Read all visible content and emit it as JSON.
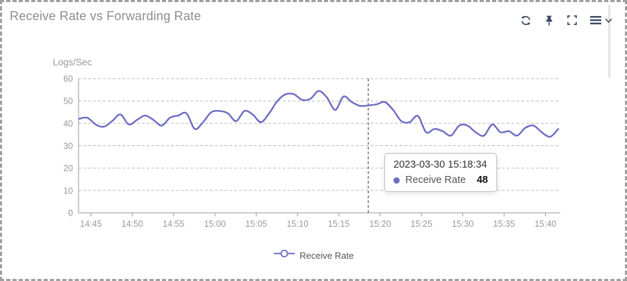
{
  "panel": {
    "title": "Receive Rate vs Forwarding Rate"
  },
  "toolbar": {
    "icons": [
      "refresh-icon",
      "pin-icon",
      "fullscreen-icon",
      "menu-icon",
      "chevron-down-icon"
    ]
  },
  "tooltip": {
    "timestamp": "2023-03-30 15:18:34",
    "series": "Receive Rate",
    "value": "48"
  },
  "legend": {
    "label": "Receive Rate"
  },
  "colors": {
    "line": "#6a6cc4",
    "grid": "#b9b9b9",
    "axis": "#9a9a9a",
    "tick_text": "#999999",
    "title_text": "#8d8d8d",
    "icon": "#3d4b63",
    "crosshair": "#333333"
  },
  "chart_data": {
    "type": "line",
    "title": "Receive Rate vs Forwarding Rate",
    "xlabel": "",
    "ylabel": "Logs/Sec",
    "ylim": [
      0,
      60
    ],
    "yticks": [
      0,
      10,
      20,
      30,
      40,
      50,
      60
    ],
    "xticks": [
      "14:45",
      "14:50",
      "14:55",
      "15:00",
      "15:05",
      "15:10",
      "15:15",
      "15:20",
      "15:25",
      "15:30",
      "15:35",
      "15:40"
    ],
    "x_domain": [
      "14:43:30",
      "15:41:48"
    ],
    "grid": true,
    "legend_position": "bottom",
    "crosshair_x": "15:18:34",
    "series": [
      {
        "name": "Receive Rate",
        "color": "#6a6cc4",
        "points": [
          [
            "14:43:34",
            42
          ],
          [
            "14:44:34",
            42.5
          ],
          [
            "14:45:34",
            39.5
          ],
          [
            "14:46:34",
            38.5
          ],
          [
            "14:47:34",
            41
          ],
          [
            "14:48:34",
            44
          ],
          [
            "14:49:34",
            39.5
          ],
          [
            "14:50:34",
            41.5
          ],
          [
            "14:51:34",
            43.5
          ],
          [
            "14:52:34",
            41.5
          ],
          [
            "14:53:34",
            39
          ],
          [
            "14:54:34",
            42.5
          ],
          [
            "14:55:34",
            43.5
          ],
          [
            "14:56:34",
            44.5
          ],
          [
            "14:57:34",
            37.5
          ],
          [
            "14:58:34",
            40.5
          ],
          [
            "14:59:34",
            45
          ],
          [
            "15:00:34",
            45.5
          ],
          [
            "15:01:34",
            44.5
          ],
          [
            "15:02:34",
            41
          ],
          [
            "15:03:34",
            45.5
          ],
          [
            "15:04:34",
            44
          ],
          [
            "15:05:34",
            40.5
          ],
          [
            "15:06:34",
            44.5
          ],
          [
            "15:07:34",
            50
          ],
          [
            "15:08:34",
            53
          ],
          [
            "15:09:34",
            53
          ],
          [
            "15:10:34",
            50.5
          ],
          [
            "15:11:34",
            51
          ],
          [
            "15:12:34",
            54.5
          ],
          [
            "15:13:34",
            51.5
          ],
          [
            "15:14:34",
            46
          ],
          [
            "15:15:34",
            52
          ],
          [
            "15:16:34",
            49.5
          ],
          [
            "15:17:34",
            47.8
          ],
          [
            "15:18:34",
            48
          ],
          [
            "15:19:34",
            48.5
          ],
          [
            "15:20:34",
            49.5
          ],
          [
            "15:21:34",
            46
          ],
          [
            "15:22:34",
            41
          ],
          [
            "15:23:34",
            40.5
          ],
          [
            "15:24:34",
            43.3
          ],
          [
            "15:25:34",
            36
          ],
          [
            "15:26:34",
            37.5
          ],
          [
            "15:27:34",
            36.5
          ],
          [
            "15:28:34",
            34.5
          ],
          [
            "15:29:34",
            39
          ],
          [
            "15:30:34",
            39
          ],
          [
            "15:31:34",
            36
          ],
          [
            "15:32:34",
            34.5
          ],
          [
            "15:33:34",
            39.5
          ],
          [
            "15:34:34",
            36
          ],
          [
            "15:35:34",
            36.5
          ],
          [
            "15:36:34",
            34.5
          ],
          [
            "15:37:34",
            38
          ],
          [
            "15:38:34",
            39
          ],
          [
            "15:39:34",
            36
          ],
          [
            "15:40:34",
            34
          ],
          [
            "15:41:34",
            37.5
          ]
        ]
      }
    ]
  }
}
